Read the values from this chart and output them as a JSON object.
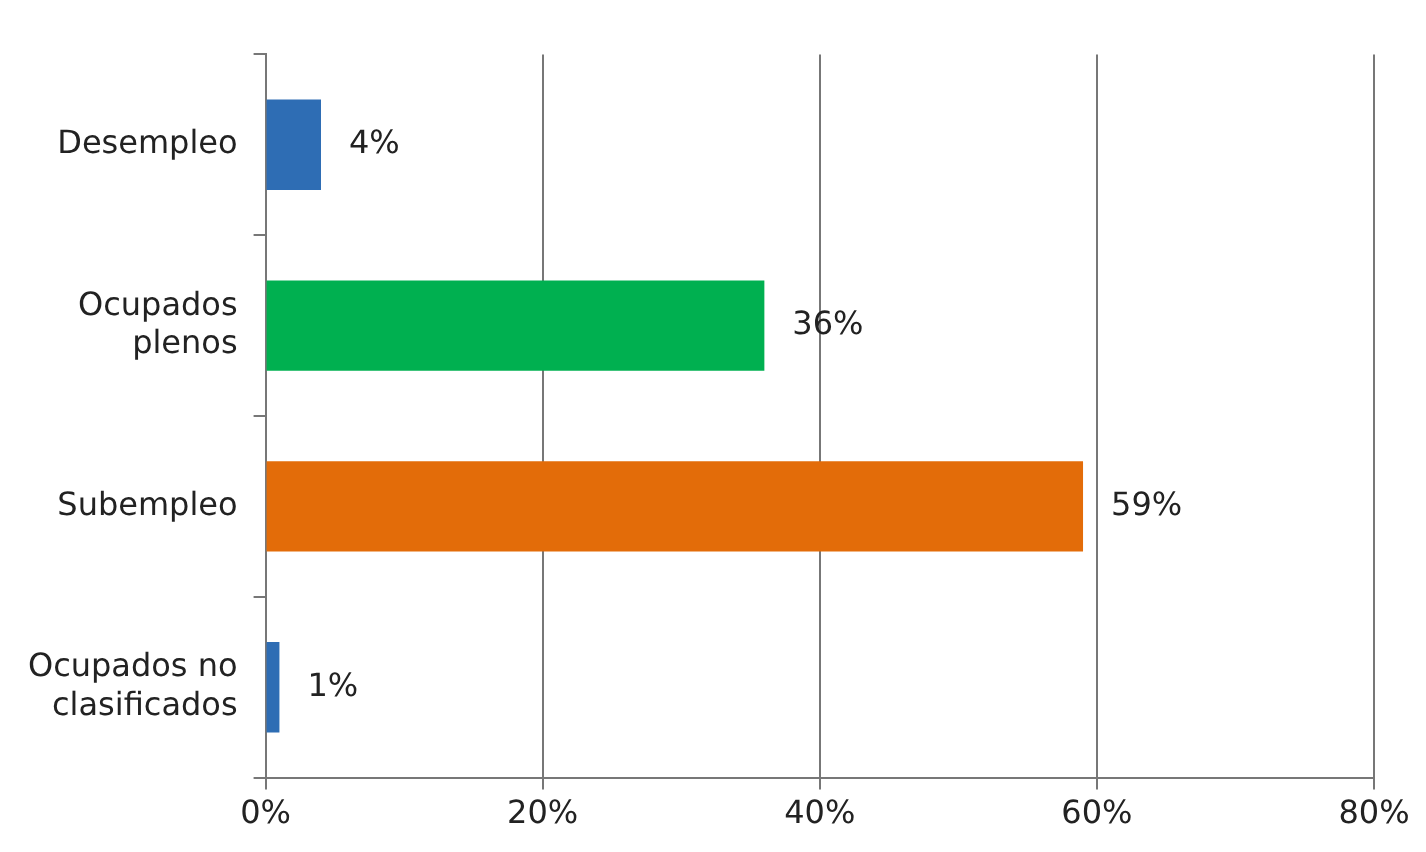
{
  "chart_data": {
    "type": "bar",
    "orientation": "horizontal",
    "categories": [
      "Desempleo",
      "Ocupados plenos",
      "Subempleo",
      "Ocupados no clasificados"
    ],
    "values": [
      4,
      36,
      59,
      1
    ],
    "colors": [
      "#2e6db4",
      "#00b050",
      "#e36c09",
      "#2e6db4"
    ],
    "value_labels": [
      "4%",
      "36%",
      "59%",
      "1%"
    ],
    "xlim": [
      0,
      80
    ],
    "xticks": [
      {
        "value": 0,
        "label": "0%"
      },
      {
        "value": 20,
        "label": "20%"
      },
      {
        "value": 40,
        "label": "40%"
      },
      {
        "value": 60,
        "label": "60%"
      },
      {
        "value": 80,
        "label": "80%"
      }
    ],
    "grid": "x",
    "legend": false
  }
}
